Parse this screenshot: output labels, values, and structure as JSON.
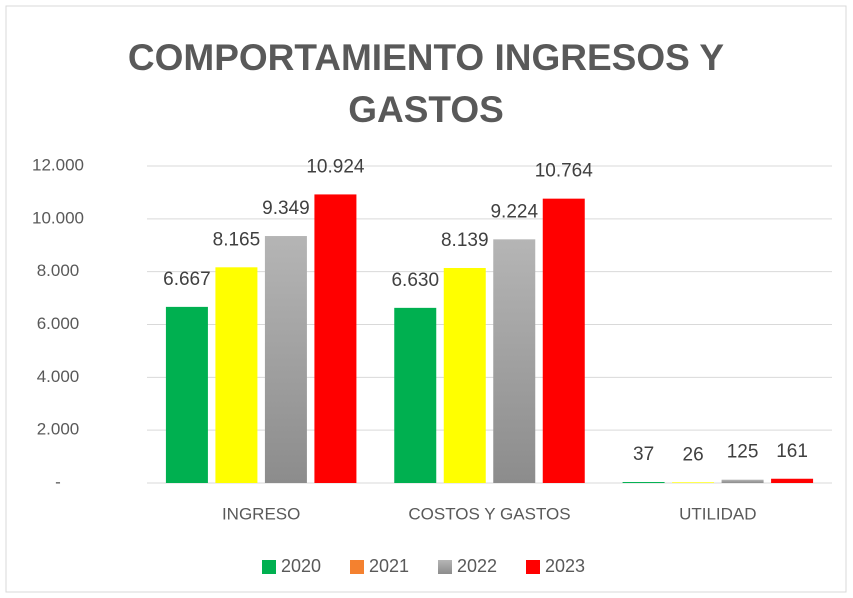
{
  "chart_data": {
    "type": "bar",
    "title": "COMPORTAMIENTO INGRESOS Y GASTOS",
    "categories": [
      "INGRESO",
      "COSTOS Y GASTOS",
      "UTILIDAD"
    ],
    "series": [
      {
        "name": "2020",
        "color": "#00b050",
        "values": [
          6667,
          6630,
          37
        ],
        "value_labels": [
          "6.667",
          "6.630",
          "37"
        ]
      },
      {
        "name": "2021",
        "color": "#ffff00",
        "legend_color": "#f4812f",
        "values": [
          8165,
          8139,
          26
        ],
        "value_labels": [
          "8.165",
          "8.139",
          "26"
        ]
      },
      {
        "name": "2022",
        "color": "#a6a6a6",
        "values": [
          9349,
          9224,
          125
        ],
        "value_labels": [
          "9.349",
          "9.224",
          "125"
        ]
      },
      {
        "name": "2023",
        "color": "#ff0000",
        "values": [
          10924,
          10764,
          161
        ],
        "value_labels": [
          "10.924",
          "10.764",
          "161"
        ]
      }
    ],
    "ylim": [
      0,
      12000
    ],
    "yticks": [
      {
        "value": 0,
        "label": "-"
      },
      {
        "value": 2000,
        "label": "2.000"
      },
      {
        "value": 4000,
        "label": "4.000"
      },
      {
        "value": 6000,
        "label": "6.000"
      },
      {
        "value": 8000,
        "label": "8.000"
      },
      {
        "value": 10000,
        "label": "10.000"
      },
      {
        "value": 12000,
        "label": "12.000"
      }
    ],
    "grid": true,
    "legend": "bottom"
  }
}
